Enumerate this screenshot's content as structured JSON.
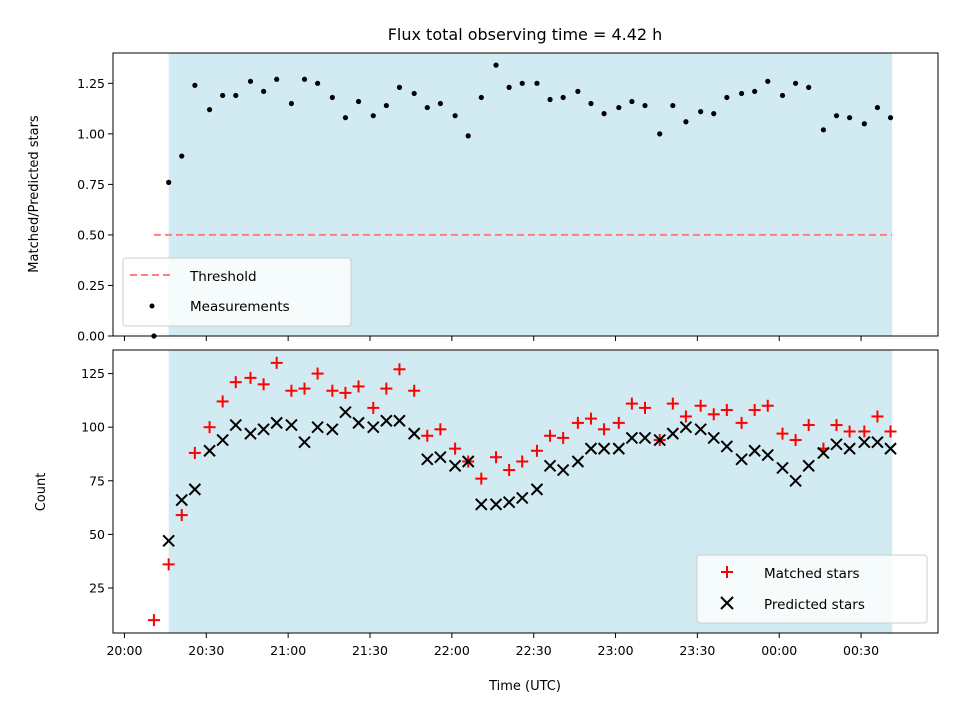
{
  "chart_data": {
    "type": "scatter",
    "title": "Flux total observing time = 4.42 h",
    "xlabel": "Time (UTC)",
    "x_unit": "hours (UTC, values past 24 are after midnight)",
    "xlim": [
      19.93,
      24.97
    ],
    "xticks": [
      {
        "value": 20.0,
        "label": "20:00"
      },
      {
        "value": 20.5,
        "label": "20:30"
      },
      {
        "value": 21.0,
        "label": "21:00"
      },
      {
        "value": 21.5,
        "label": "21:30"
      },
      {
        "value": 22.0,
        "label": "22:00"
      },
      {
        "value": 22.5,
        "label": "22:30"
      },
      {
        "value": 23.0,
        "label": "23:00"
      },
      {
        "value": 23.5,
        "label": "23:30"
      },
      {
        "value": 24.0,
        "label": "00:00"
      },
      {
        "value": 24.5,
        "label": "00:30"
      }
    ],
    "observing_span": [
      20.27,
      24.69
    ],
    "colors": {
      "observing_span": "#add8e6",
      "threshold": "#ff7f7f",
      "measurements": "#000000",
      "matched": "#ff0000",
      "predicted": "#000000"
    },
    "panels": [
      {
        "ylabel": "Matched/Predicted stars",
        "ylim": [
          0,
          1.4
        ],
        "yticks": [
          "0.00",
          "0.25",
          "0.50",
          "0.75",
          "1.00",
          "1.25"
        ],
        "legend_position": "lower-left",
        "threshold": {
          "name": "Threshold",
          "value": 0.5,
          "x_range": [
            20.18,
            24.69
          ]
        },
        "series": [
          {
            "name": "Measurements",
            "marker": "dot",
            "x": [
              20.18,
              20.27,
              20.35,
              20.43,
              20.52,
              20.6,
              20.68,
              20.77,
              20.85,
              20.93,
              21.02,
              21.1,
              21.18,
              21.27,
              21.35,
              21.43,
              21.52,
              21.6,
              21.68,
              21.77,
              21.85,
              21.93,
              22.02,
              22.1,
              22.18,
              22.27,
              22.35,
              22.43,
              22.52,
              22.6,
              22.68,
              22.77,
              22.85,
              22.93,
              23.02,
              23.1,
              23.18,
              23.27,
              23.35,
              23.43,
              23.52,
              23.6,
              23.68,
              23.77,
              23.85,
              23.93,
              24.02,
              24.1,
              24.18,
              24.27,
              24.35,
              24.43,
              24.52,
              24.6,
              24.68
            ],
            "y": [
              0.0,
              0.76,
              0.89,
              1.24,
              1.12,
              1.19,
              1.19,
              1.26,
              1.21,
              1.27,
              1.15,
              1.27,
              1.25,
              1.18,
              1.08,
              1.16,
              1.09,
              1.14,
              1.23,
              1.2,
              1.13,
              1.15,
              1.09,
              0.99,
              1.18,
              1.34,
              1.23,
              1.25,
              1.25,
              1.17,
              1.18,
              1.21,
              1.15,
              1.1,
              1.13,
              1.16,
              1.14,
              1.0,
              1.14,
              1.06,
              1.11,
              1.1,
              1.18,
              1.2,
              1.21,
              1.26,
              1.19,
              1.25,
              1.23,
              1.02,
              1.09,
              1.08,
              1.05,
              1.13,
              1.08
            ]
          }
        ]
      },
      {
        "ylabel": "Count",
        "ylim": [
          4,
          136
        ],
        "yticks": [
          "25",
          "50",
          "75",
          "100",
          "125"
        ],
        "legend_position": "lower-right",
        "series": [
          {
            "name": "Matched stars",
            "marker": "plus",
            "x": [
              20.18,
              20.27,
              20.35,
              20.43,
              20.52,
              20.6,
              20.68,
              20.77,
              20.85,
              20.93,
              21.02,
              21.1,
              21.18,
              21.27,
              21.35,
              21.43,
              21.52,
              21.6,
              21.68,
              21.77,
              21.85,
              21.93,
              22.02,
              22.1,
              22.18,
              22.27,
              22.35,
              22.43,
              22.52,
              22.6,
              22.68,
              22.77,
              22.85,
              22.93,
              23.02,
              23.1,
              23.18,
              23.27,
              23.35,
              23.43,
              23.52,
              23.6,
              23.68,
              23.77,
              23.85,
              23.93,
              24.02,
              24.1,
              24.18,
              24.27,
              24.35,
              24.43,
              24.52,
              24.6,
              24.68
            ],
            "y": [
              10,
              36,
              59,
              88,
              100,
              112,
              121,
              123,
              120,
              130,
              117,
              118,
              125,
              117,
              116,
              119,
              109,
              118,
              127,
              117,
              96,
              99,
              90,
              84,
              76,
              86,
              80,
              84,
              89,
              96,
              95,
              102,
              104,
              99,
              102,
              111,
              109,
              94,
              111,
              105,
              110,
              106,
              108,
              102,
              108,
              110,
              97,
              94,
              101,
              90,
              101,
              98,
              98,
              105,
              98
            ]
          },
          {
            "name": "Predicted stars",
            "marker": "x",
            "x": [
              20.27,
              20.35,
              20.43,
              20.52,
              20.6,
              20.68,
              20.77,
              20.85,
              20.93,
              21.02,
              21.1,
              21.18,
              21.27,
              21.35,
              21.43,
              21.52,
              21.6,
              21.68,
              21.77,
              21.85,
              21.93,
              22.02,
              22.1,
              22.18,
              22.27,
              22.35,
              22.43,
              22.52,
              22.6,
              22.68,
              22.77,
              22.85,
              22.93,
              23.02,
              23.1,
              23.18,
              23.27,
              23.35,
              23.43,
              23.52,
              23.6,
              23.68,
              23.77,
              23.85,
              23.93,
              24.02,
              24.1,
              24.18,
              24.27,
              24.35,
              24.43,
              24.52,
              24.6,
              24.68
            ],
            "y": [
              47,
              66,
              71,
              89,
              94,
              101,
              97,
              99,
              102,
              101,
              93,
              100,
              99,
              107,
              102,
              100,
              103,
              103,
              97,
              85,
              86,
              82,
              84,
              64,
              64,
              65,
              67,
              71,
              82,
              80,
              84,
              90,
              90,
              90,
              95,
              95,
              94,
              97,
              100,
              99,
              95,
              91,
              85,
              89,
              87,
              81,
              75,
              82,
              88,
              92,
              90,
              93,
              93,
              90
            ]
          }
        ]
      }
    ]
  }
}
